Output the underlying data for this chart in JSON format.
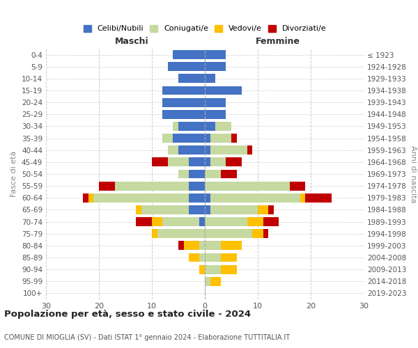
{
  "age_groups": [
    "0-4",
    "5-9",
    "10-14",
    "15-19",
    "20-24",
    "25-29",
    "30-34",
    "35-39",
    "40-44",
    "45-49",
    "50-54",
    "55-59",
    "60-64",
    "65-69",
    "70-74",
    "75-79",
    "80-84",
    "85-89",
    "90-94",
    "95-99",
    "100+"
  ],
  "birth_years": [
    "2019-2023",
    "2014-2018",
    "2009-2013",
    "2004-2008",
    "1999-2003",
    "1994-1998",
    "1989-1993",
    "1984-1988",
    "1979-1983",
    "1974-1978",
    "1969-1973",
    "1964-1968",
    "1959-1963",
    "1954-1958",
    "1949-1953",
    "1944-1948",
    "1939-1943",
    "1934-1938",
    "1929-1933",
    "1924-1928",
    "≤ 1923"
  ],
  "males": {
    "celibi": [
      6,
      7,
      5,
      8,
      8,
      8,
      5,
      6,
      5,
      3,
      3,
      3,
      3,
      3,
      1,
      0,
      0,
      0,
      0,
      0,
      0
    ],
    "coniugati": [
      0,
      0,
      0,
      0,
      0,
      0,
      1,
      2,
      2,
      4,
      2,
      14,
      18,
      9,
      7,
      9,
      1,
      1,
      0,
      0,
      0
    ],
    "vedovi": [
      0,
      0,
      0,
      0,
      0,
      0,
      0,
      0,
      0,
      0,
      0,
      0,
      1,
      1,
      2,
      1,
      3,
      2,
      1,
      0,
      0
    ],
    "divorziati": [
      0,
      0,
      0,
      0,
      0,
      0,
      0,
      0,
      0,
      3,
      0,
      3,
      1,
      0,
      3,
      0,
      1,
      0,
      0,
      0,
      0
    ]
  },
  "females": {
    "nubili": [
      4,
      4,
      2,
      7,
      4,
      4,
      2,
      1,
      1,
      1,
      0,
      0,
      1,
      1,
      0,
      0,
      0,
      0,
      0,
      0,
      0
    ],
    "coniugate": [
      0,
      0,
      0,
      0,
      0,
      0,
      3,
      4,
      7,
      3,
      3,
      16,
      17,
      9,
      8,
      9,
      3,
      3,
      3,
      1,
      0
    ],
    "vedove": [
      0,
      0,
      0,
      0,
      0,
      0,
      0,
      0,
      0,
      0,
      0,
      0,
      1,
      2,
      3,
      2,
      4,
      3,
      3,
      2,
      0
    ],
    "divorziate": [
      0,
      0,
      0,
      0,
      0,
      0,
      0,
      1,
      1,
      3,
      3,
      3,
      5,
      1,
      3,
      1,
      0,
      0,
      0,
      0,
      0
    ]
  },
  "colors": {
    "celibi_nubili": "#4472c4",
    "coniugati": "#c5d9a0",
    "vedovi": "#ffc000",
    "divorziati": "#c00000"
  },
  "xlim": 30,
  "title": "Popolazione per età, sesso e stato civile - 2024",
  "subtitle": "COMUNE DI MIOGLIA (SV) - Dati ISTAT 1° gennaio 2024 - Elaborazione TUTTITALIA.IT",
  "ylabel_left": "Fasce di età",
  "ylabel_right": "Anni di nascita",
  "xlabel_left": "Maschi",
  "xlabel_right": "Femmine",
  "legend_labels": [
    "Celibi/Nubili",
    "Coniugati/e",
    "Vedovi/e",
    "Divorziati/e"
  ],
  "background_color": "#ffffff"
}
